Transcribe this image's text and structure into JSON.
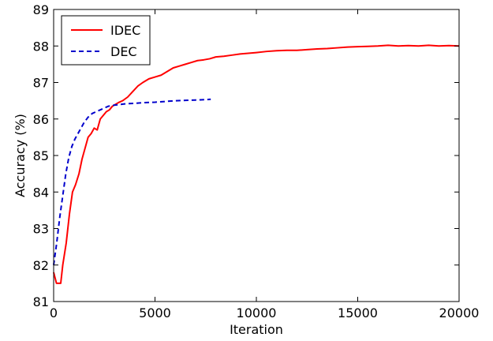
{
  "chart_data": {
    "type": "line",
    "title": "",
    "xlabel": "Iteration",
    "ylabel": "Accuracy (%)",
    "xlim": [
      0,
      20000
    ],
    "ylim": [
      81,
      89
    ],
    "xticks": [
      0,
      5000,
      10000,
      15000,
      20000
    ],
    "yticks": [
      81,
      82,
      83,
      84,
      85,
      86,
      87,
      88,
      89
    ],
    "grid": false,
    "legend_position": "top-left",
    "series": [
      {
        "name": "IDEC",
        "color": "#ff0000",
        "style": "solid",
        "x": [
          0,
          140,
          350,
          450,
          620,
          780,
          930,
          1080,
          1250,
          1400,
          1550,
          1700,
          1850,
          2000,
          2150,
          2300,
          2450,
          2600,
          2750,
          2900,
          3050,
          3200,
          3400,
          3650,
          3900,
          4150,
          4400,
          4700,
          5000,
          5300,
          5600,
          5900,
          6200,
          6500,
          6800,
          7100,
          7400,
          7700,
          8000,
          8400,
          8800,
          9200,
          9600,
          10000,
          10500,
          11000,
          11500,
          12000,
          12500,
          13000,
          13500,
          14000,
          14500,
          15000,
          15500,
          16000,
          16500,
          17000,
          17500,
          18000,
          18500,
          19000,
          19500,
          20000
        ],
        "y": [
          81.8,
          81.5,
          81.5,
          82.0,
          82.6,
          83.4,
          84.0,
          84.2,
          84.5,
          84.9,
          85.2,
          85.5,
          85.6,
          85.75,
          85.7,
          86.0,
          86.1,
          86.2,
          86.25,
          86.35,
          86.4,
          86.45,
          86.5,
          86.6,
          86.75,
          86.9,
          87.0,
          87.1,
          87.15,
          87.2,
          87.3,
          87.4,
          87.45,
          87.5,
          87.55,
          87.6,
          87.62,
          87.65,
          87.7,
          87.72,
          87.75,
          87.78,
          87.8,
          87.82,
          87.85,
          87.87,
          87.88,
          87.88,
          87.9,
          87.92,
          87.93,
          87.95,
          87.97,
          87.98,
          87.99,
          88.0,
          88.02,
          88.0,
          88.01,
          88.0,
          88.02,
          88.0,
          88.01,
          88.0
        ]
      },
      {
        "name": "DEC",
        "color": "#0000cc",
        "style": "dashed",
        "x": [
          0,
          150,
          300,
          450,
          600,
          750,
          900,
          1050,
          1200,
          1350,
          1500,
          1700,
          1900,
          2100,
          2300,
          2500,
          2700,
          3000,
          3300,
          3600,
          4000,
          4500,
          5000,
          5500,
          6000,
          6500,
          7000,
          7500,
          7750
        ],
        "y": [
          82.0,
          82.6,
          83.3,
          83.9,
          84.5,
          84.95,
          85.25,
          85.45,
          85.6,
          85.75,
          85.9,
          86.05,
          86.15,
          86.2,
          86.25,
          86.3,
          86.35,
          86.38,
          86.4,
          86.42,
          86.43,
          86.45,
          86.46,
          86.48,
          86.5,
          86.51,
          86.52,
          86.53,
          86.54
        ]
      }
    ]
  }
}
